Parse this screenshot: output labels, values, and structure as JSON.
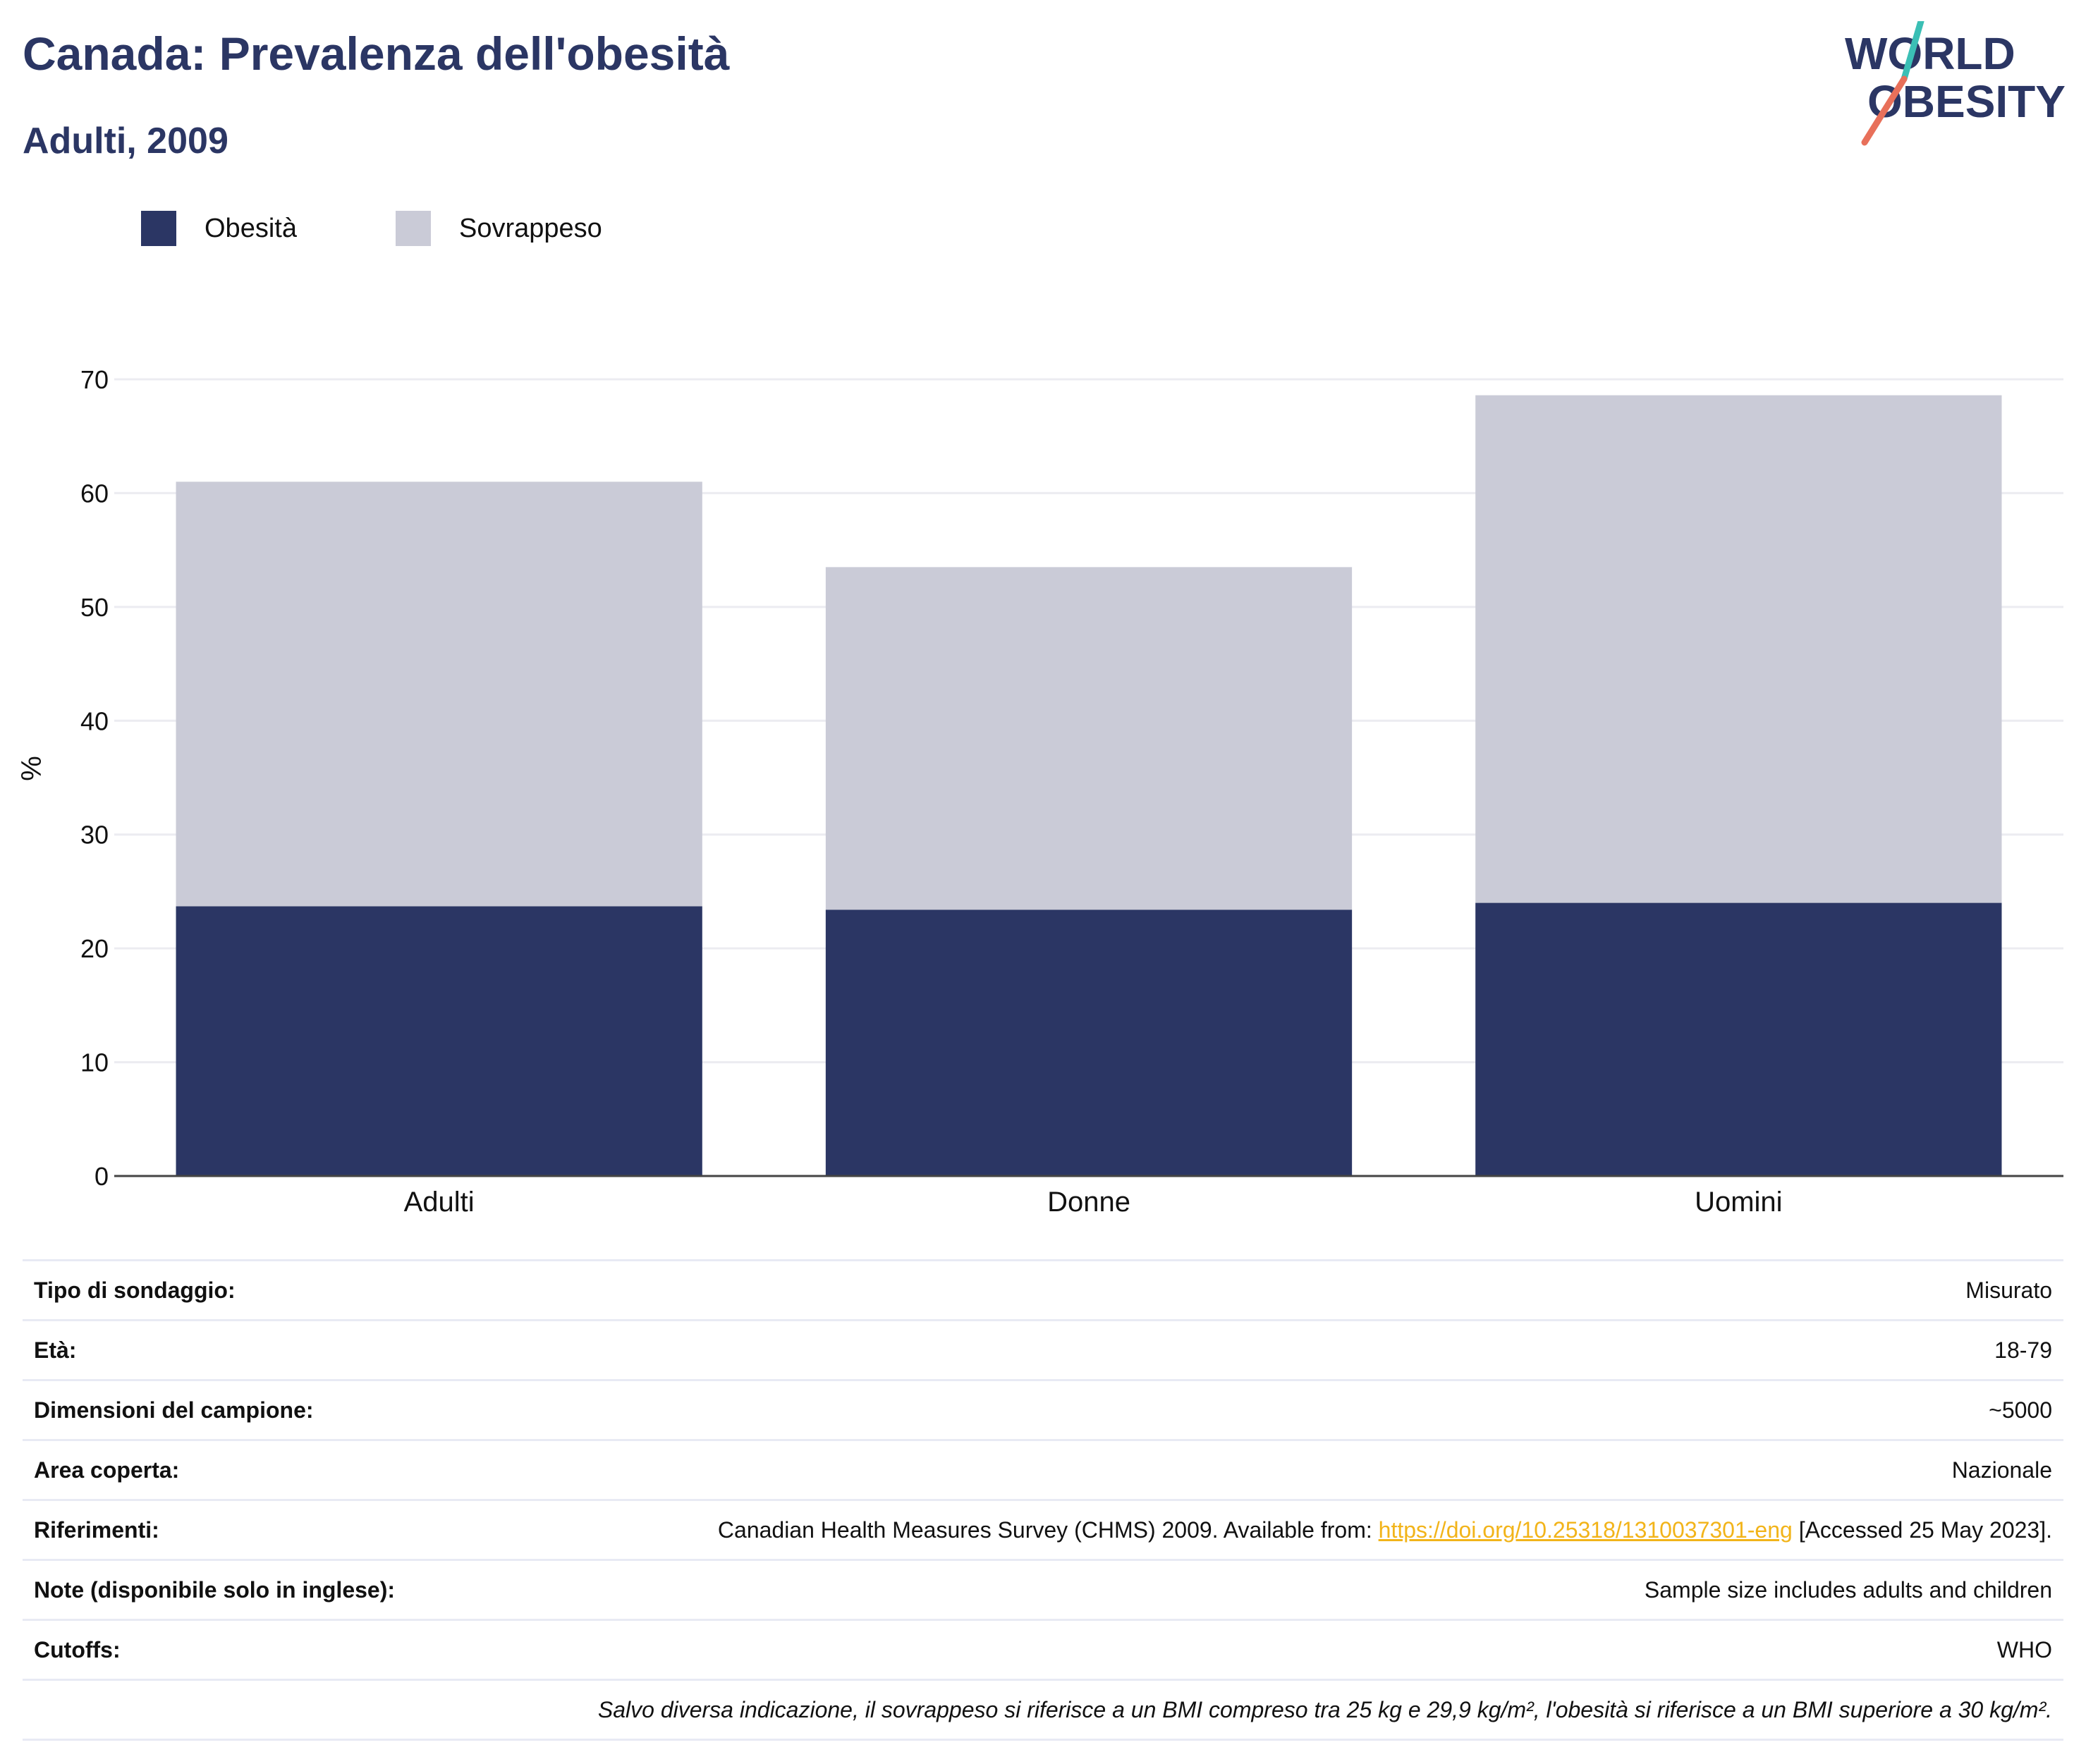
{
  "header": {
    "title": "Canada: Prevalenza dell'obesità",
    "subtitle": "Adulti, 2009",
    "logo": {
      "line1": "WORLD",
      "line2": "OBESITY"
    }
  },
  "colors": {
    "obesity": "#2b3664",
    "overweight": "#cacbd7",
    "title": "#2b3664",
    "link": "#f2b41a",
    "logo_teal": "#3bbfb5",
    "logo_coral": "#e8705a"
  },
  "chart_data": {
    "type": "bar",
    "stacked": true,
    "title": "Canada: Prevalenza dell'obesità",
    "subtitle": "Adulti, 2009",
    "categories": [
      "Adulti",
      "Donne",
      "Uomini"
    ],
    "series": [
      {
        "name": "Obesità",
        "values": [
          23.7,
          23.4,
          24.0
        ]
      },
      {
        "name": "Sovrappeso",
        "values": [
          37.3,
          30.1,
          44.6
        ]
      }
    ],
    "ylabel": "%",
    "xlabel": "",
    "ylim": [
      0,
      70
    ],
    "yticks": [
      0,
      10,
      20,
      30,
      40,
      50,
      60,
      70
    ],
    "grid": true,
    "legend": "top-left"
  },
  "info": {
    "rows": [
      {
        "label": "Tipo di sondaggio:",
        "value": "Misurato"
      },
      {
        "label": "Età:",
        "value": "18-79"
      },
      {
        "label": "Dimensioni del campione:",
        "value": "~5000"
      },
      {
        "label": "Area coperta:",
        "value": "Nazionale"
      },
      {
        "label": "Note (disponibile solo in inglese):",
        "value": "Sample size includes adults and children"
      },
      {
        "label": "Cutoffs:",
        "value": "WHO"
      }
    ],
    "reference": {
      "label": "Riferimenti:",
      "text_before": "Canadian Health Measures Survey (CHMS) 2009. Available from: ",
      "link": "https://doi.org/10.25318/1310037301-eng",
      "text_after": " [Accessed 25 May 2023]."
    },
    "footnote": "Salvo diversa indicazione, il sovrappeso si riferisce a un BMI compreso tra 25 kg e 29,9 kg/m², l'obesità si riferisce a un BMI superiore a 30 kg/m²."
  }
}
